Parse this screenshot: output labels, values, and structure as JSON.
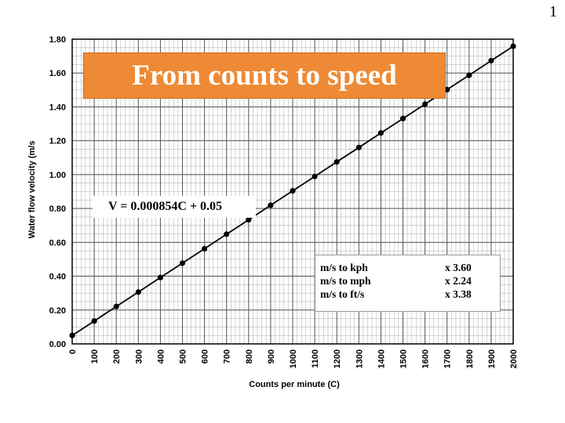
{
  "slide_number": "1",
  "banner_text": "From counts to speed",
  "equation": "V = 0.000854C + 0.05",
  "conversion_table": [
    {
      "label": "m/s to kph",
      "factor": "x  3.60"
    },
    {
      "label": "m/s to mph",
      "factor": "x  2.24"
    },
    {
      "label": "m/s to ft/s",
      "factor": "x  3.38"
    }
  ],
  "chart_data": {
    "type": "line",
    "title": "",
    "xlabel": "Counts per minute (C)",
    "ylabel": "Water flow velocity (m/s",
    "xlim": [
      0,
      2000
    ],
    "ylim": [
      0,
      1.8
    ],
    "x_ticks": [
      "0",
      "100",
      "200",
      "300",
      "400",
      "500",
      "600",
      "700",
      "800",
      "900",
      "1000",
      "1100",
      "1200",
      "1300",
      "1400",
      "1500",
      "1600",
      "1700",
      "1800",
      "1900",
      "2000"
    ],
    "y_ticks": [
      "0.00",
      "0.20",
      "0.40",
      "0.60",
      "0.80",
      "1.00",
      "1.20",
      "1.40",
      "1.60",
      "1.80"
    ],
    "grid": true,
    "series": [
      {
        "x": [
          0,
          100,
          200,
          300,
          400,
          500,
          600,
          700,
          800,
          900,
          1000,
          1100,
          1200,
          1300,
          1400,
          1500,
          1600,
          1700,
          1800,
          1900,
          2000
        ],
        "y": [
          0.05,
          0.135,
          0.221,
          0.306,
          0.392,
          0.477,
          0.562,
          0.648,
          0.733,
          0.819,
          0.904,
          0.989,
          1.075,
          1.16,
          1.246,
          1.331,
          1.416,
          1.502,
          1.587,
          1.673,
          1.758
        ]
      }
    ]
  }
}
